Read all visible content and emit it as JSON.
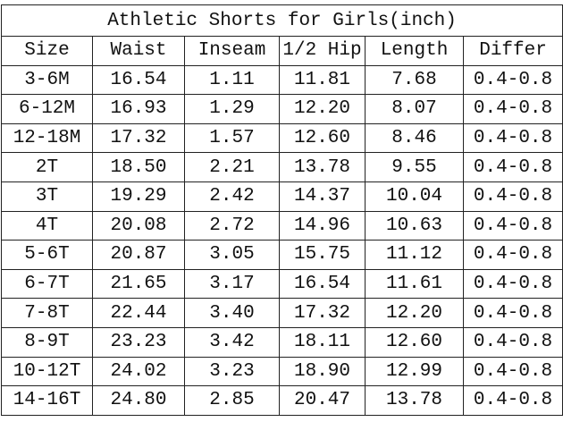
{
  "title": "Athletic Shorts for Girls(inch)",
  "columns": [
    "Size",
    "Waist",
    "Inseam",
    "1/2 Hip",
    "Length",
    "Differ"
  ],
  "rows": [
    [
      "3-6M",
      "16.54",
      "1.11",
      "11.81",
      "7.68",
      "0.4-0.8"
    ],
    [
      "6-12M",
      "16.93",
      "1.29",
      "12.20",
      "8.07",
      "0.4-0.8"
    ],
    [
      "12-18M",
      "17.32",
      "1.57",
      "12.60",
      "8.46",
      "0.4-0.8"
    ],
    [
      "2T",
      "18.50",
      "2.21",
      "13.78",
      "9.55",
      "0.4-0.8"
    ],
    [
      "3T",
      "19.29",
      "2.42",
      "14.37",
      "10.04",
      "0.4-0.8"
    ],
    [
      "4T",
      "20.08",
      "2.72",
      "14.96",
      "10.63",
      "0.4-0.8"
    ],
    [
      "5-6T",
      "20.87",
      "3.05",
      "15.75",
      "11.12",
      "0.4-0.8"
    ],
    [
      "6-7T",
      "21.65",
      "3.17",
      "16.54",
      "11.61",
      "0.4-0.8"
    ],
    [
      "7-8T",
      "22.44",
      "3.40",
      "17.32",
      "12.20",
      "0.4-0.8"
    ],
    [
      "8-9T",
      "23.23",
      "3.42",
      "18.11",
      "12.60",
      "0.4-0.8"
    ],
    [
      "10-12T",
      "24.02",
      "3.23",
      "18.90",
      "12.99",
      "0.4-0.8"
    ],
    [
      "14-16T",
      "24.80",
      "2.85",
      "20.47",
      "13.78",
      "0.4-0.8"
    ]
  ]
}
